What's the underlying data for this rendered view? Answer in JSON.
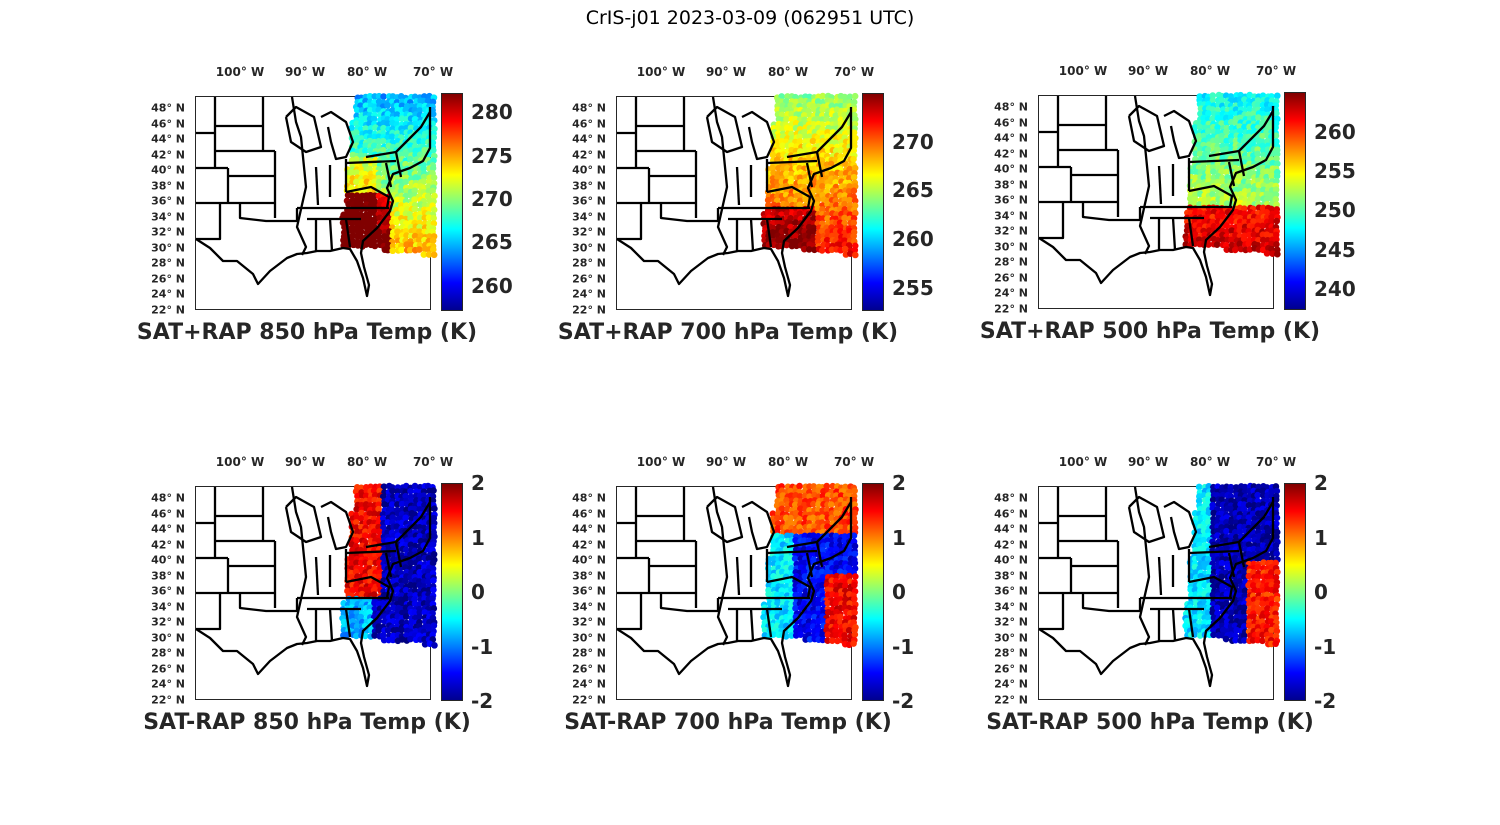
{
  "figure_title": "CrIS-j01 2023-03-09 (062951 UTC)",
  "chart_data": [
    {
      "type": "heatmap",
      "title": "SAT+RAP 850 hPa Temp (K)",
      "clim": [
        257.1,
        282.2
      ],
      "colorbar_ticks": [
        260,
        265,
        270,
        275,
        280
      ],
      "colormap": "jet",
      "lat_ticks": [
        "48° N",
        "46° N",
        "44° N",
        "42° N",
        "40° N",
        "38° N",
        "36° N",
        "34° N",
        "32° N",
        "30° N",
        "28° N",
        "26° N",
        "24° N",
        "22° N"
      ],
      "lon_ticks": [
        "100° W",
        "90° W",
        "80° W",
        "70° W"
      ],
      "pattern": "sum850"
    },
    {
      "type": "heatmap",
      "title": "SAT+RAP 700 hPa Temp (K)",
      "clim": [
        252.6,
        275.0
      ],
      "colorbar_ticks": [
        255,
        260,
        265,
        270
      ],
      "colormap": "jet",
      "lat_ticks": [
        "48° N",
        "46° N",
        "44° N",
        "42° N",
        "40° N",
        "38° N",
        "36° N",
        "34° N",
        "32° N",
        "30° N",
        "28° N",
        "26° N",
        "24° N",
        "22° N"
      ],
      "lon_ticks": [
        "100° W",
        "90° W",
        "80° W",
        "70° W"
      ],
      "pattern": "sum700"
    },
    {
      "type": "heatmap",
      "title": "SAT+RAP 500 hPa Temp (K)",
      "clim": [
        237.3,
        265.1
      ],
      "colorbar_ticks": [
        240,
        245,
        250,
        255,
        260
      ],
      "colormap": "jet",
      "lat_ticks": [
        "48° N",
        "46° N",
        "44° N",
        "42° N",
        "40° N",
        "38° N",
        "36° N",
        "34° N",
        "32° N",
        "30° N",
        "28° N",
        "26° N",
        "24° N",
        "22° N"
      ],
      "lon_ticks": [
        "100° W",
        "90° W",
        "80° W",
        "70° W"
      ],
      "pattern": "sum500"
    },
    {
      "type": "heatmap",
      "title": "SAT-RAP 850 hPa Temp (K)",
      "clim": [
        -2,
        2
      ],
      "colorbar_ticks": [
        -2,
        -1,
        0,
        1,
        2
      ],
      "colormap": "jet",
      "lat_ticks": [
        "48° N",
        "46° N",
        "44° N",
        "42° N",
        "40° N",
        "38° N",
        "36° N",
        "34° N",
        "32° N",
        "30° N",
        "28° N",
        "26° N",
        "24° N",
        "22° N"
      ],
      "lon_ticks": [
        "100° W",
        "90° W",
        "80° W",
        "70° W"
      ],
      "pattern": "diff850"
    },
    {
      "type": "heatmap",
      "title": "SAT-RAP 700 hPa Temp (K)",
      "clim": [
        -2,
        2
      ],
      "colorbar_ticks": [
        -2,
        -1,
        0,
        1,
        2
      ],
      "colormap": "jet",
      "lat_ticks": [
        "48° N",
        "46° N",
        "44° N",
        "42° N",
        "40° N",
        "38° N",
        "36° N",
        "34° N",
        "32° N",
        "30° N",
        "28° N",
        "26° N",
        "24° N",
        "22° N"
      ],
      "lon_ticks": [
        "100° W",
        "90° W",
        "80° W",
        "70° W"
      ],
      "pattern": "diff700"
    },
    {
      "type": "heatmap",
      "title": "SAT-RAP 500 hPa Temp (K)",
      "clim": [
        -2,
        2
      ],
      "colorbar_ticks": [
        -2,
        -1,
        0,
        1,
        2
      ],
      "colormap": "jet",
      "lat_ticks": [
        "48° N",
        "46° N",
        "44° N",
        "42° N",
        "40° N",
        "38° N",
        "36° N",
        "34° N",
        "32° N",
        "30° N",
        "28° N",
        "26° N",
        "24° N",
        "22° N"
      ],
      "lon_ticks": [
        "100° W",
        "90° W",
        "80° W",
        "70° W"
      ],
      "pattern": "diff500"
    }
  ]
}
